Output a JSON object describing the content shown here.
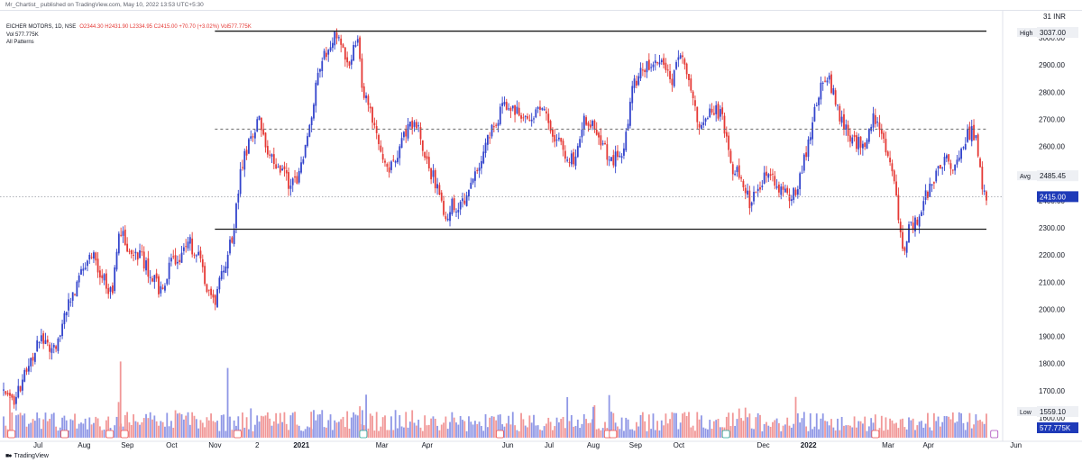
{
  "header": {
    "published_note": "Mr_Chartist_ published on TradingView.com, May 10, 2022 13:53 UTC+5:30",
    "symbol_line": "EICHER MOTORS, 1D, NSE",
    "ohlc": "O2344.30 H2431.90 L2334.95 C2415.00 +70.70 (+3.02%) Vol577.775K",
    "vol_line": "Vol 577.775K",
    "patterns_label": "All Patterns"
  },
  "price_axis": {
    "currency": "INR",
    "top_label": "31",
    "labels": {
      "high": "High",
      "high_value": "3037.00",
      "avg": "Avg",
      "avg_value": "2485.45",
      "last": "2415.00",
      "low": "Low",
      "low_value": "1559.10",
      "volume": "577.775K"
    }
  },
  "logo_text": "TradingView",
  "colors": {
    "up": "#3344cc",
    "down": "#e53935",
    "last_bg": "#1e3ab8",
    "vol_bg": "#1e3ab8"
  },
  "chart_data": {
    "type": "candlestick",
    "symbol": "EICHER MOTORS",
    "interval": "1D",
    "exchange": "NSE",
    "ylim": [
      1560,
      3080
    ],
    "yticks": [
      1600,
      1700,
      1800,
      1900,
      2000,
      2100,
      2200,
      2300,
      2400,
      2500,
      2600,
      2700,
      2800,
      2900,
      3000
    ],
    "x_labels": [
      {
        "label": "Jul",
        "pos": 0.035
      },
      {
        "label": "Aug",
        "pos": 0.082
      },
      {
        "label": "Sep",
        "pos": 0.126
      },
      {
        "label": "Oct",
        "pos": 0.171
      },
      {
        "label": "Nov",
        "pos": 0.215
      },
      {
        "label": "2",
        "pos": 0.258
      },
      {
        "label": "2021",
        "pos": 0.303,
        "bold": true
      },
      {
        "label": "Mar",
        "pos": 0.385
      },
      {
        "label": "Apr",
        "pos": 0.431
      },
      {
        "label": "Jun",
        "pos": 0.513
      },
      {
        "label": "Jul",
        "pos": 0.555
      },
      {
        "label": "Aug",
        "pos": 0.6
      },
      {
        "label": "Sep",
        "pos": 0.643
      },
      {
        "label": "Oct",
        "pos": 0.687
      },
      {
        "label": "Dec",
        "pos": 0.773
      },
      {
        "label": "2022",
        "pos": 0.819,
        "bold": true
      },
      {
        "label": "Mar",
        "pos": 0.9
      },
      {
        "label": "Apr",
        "pos": 0.941
      },
      {
        "label": "Jun",
        "pos": 1.03
      }
    ],
    "levels": [
      {
        "name": "resistance",
        "value": 3025,
        "style": "solid",
        "from": 0.215,
        "to": 1.0
      },
      {
        "name": "mid",
        "value": 2664,
        "style": "dashed",
        "from": 0.215,
        "to": 1.0
      },
      {
        "name": "support",
        "value": 2295,
        "style": "solid",
        "from": 0.215,
        "to": 1.0
      }
    ],
    "last_price": 2415,
    "average": 2485.45,
    "high": 3037,
    "low": 1559.1,
    "path": [
      [
        0,
        1700
      ],
      [
        0.01,
        1640
      ],
      [
        0.02,
        1760
      ],
      [
        0.03,
        1830
      ],
      [
        0.04,
        1900
      ],
      [
        0.05,
        1840
      ],
      [
        0.06,
        1960
      ],
      [
        0.07,
        2050
      ],
      [
        0.08,
        2140
      ],
      [
        0.09,
        2220
      ],
      [
        0.1,
        2120
      ],
      [
        0.11,
        2050
      ],
      [
        0.115,
        2220
      ],
      [
        0.12,
        2300
      ],
      [
        0.13,
        2180
      ],
      [
        0.14,
        2200
      ],
      [
        0.15,
        2120
      ],
      [
        0.16,
        2060
      ],
      [
        0.17,
        2170
      ],
      [
        0.18,
        2200
      ],
      [
        0.19,
        2240
      ],
      [
        0.2,
        2180
      ],
      [
        0.205,
        2100
      ],
      [
        0.215,
        2030
      ],
      [
        0.225,
        2170
      ],
      [
        0.235,
        2300
      ],
      [
        0.24,
        2500
      ],
      [
        0.25,
        2620
      ],
      [
        0.26,
        2720
      ],
      [
        0.27,
        2560
      ],
      [
        0.28,
        2540
      ],
      [
        0.29,
        2470
      ],
      [
        0.3,
        2490
      ],
      [
        0.31,
        2650
      ],
      [
        0.32,
        2880
      ],
      [
        0.33,
        2960
      ],
      [
        0.34,
        3030
      ],
      [
        0.35,
        2900
      ],
      [
        0.36,
        3010
      ],
      [
        0.365,
        2820
      ],
      [
        0.375,
        2700
      ],
      [
        0.38,
        2620
      ],
      [
        0.39,
        2500
      ],
      [
        0.4,
        2560
      ],
      [
        0.41,
        2660
      ],
      [
        0.42,
        2680
      ],
      [
        0.43,
        2550
      ],
      [
        0.44,
        2460
      ],
      [
        0.45,
        2320
      ],
      [
        0.455,
        2390
      ],
      [
        0.465,
        2370
      ],
      [
        0.475,
        2460
      ],
      [
        0.49,
        2590
      ],
      [
        0.5,
        2690
      ],
      [
        0.51,
        2760
      ],
      [
        0.52,
        2740
      ],
      [
        0.53,
        2700
      ],
      [
        0.54,
        2710
      ],
      [
        0.55,
        2740
      ],
      [
        0.56,
        2640
      ],
      [
        0.57,
        2580
      ],
      [
        0.58,
        2540
      ],
      [
        0.59,
        2700
      ],
      [
        0.6,
        2690
      ],
      [
        0.61,
        2590
      ],
      [
        0.62,
        2550
      ],
      [
        0.63,
        2580
      ],
      [
        0.64,
        2820
      ],
      [
        0.65,
        2880
      ],
      [
        0.66,
        2900
      ],
      [
        0.67,
        2940
      ],
      [
        0.68,
        2850
      ],
      [
        0.69,
        2930
      ],
      [
        0.7,
        2780
      ],
      [
        0.71,
        2670
      ],
      [
        0.72,
        2740
      ],
      [
        0.73,
        2720
      ],
      [
        0.74,
        2530
      ],
      [
        0.75,
        2490
      ],
      [
        0.76,
        2380
      ],
      [
        0.77,
        2460
      ],
      [
        0.78,
        2510
      ],
      [
        0.79,
        2450
      ],
      [
        0.8,
        2390
      ],
      [
        0.81,
        2480
      ],
      [
        0.82,
        2640
      ],
      [
        0.83,
        2800
      ],
      [
        0.84,
        2850
      ],
      [
        0.85,
        2720
      ],
      [
        0.86,
        2650
      ],
      [
        0.87,
        2610
      ],
      [
        0.875,
        2590
      ],
      [
        0.885,
        2720
      ],
      [
        0.895,
        2640
      ],
      [
        0.905,
        2500
      ],
      [
        0.91,
        2350
      ],
      [
        0.915,
        2200
      ],
      [
        0.92,
        2290
      ],
      [
        0.93,
        2340
      ],
      [
        0.94,
        2430
      ],
      [
        0.95,
        2500
      ],
      [
        0.96,
        2560
      ],
      [
        0.965,
        2510
      ],
      [
        0.975,
        2610
      ],
      [
        0.985,
        2660
      ],
      [
        0.99,
        2620
      ],
      [
        0.995,
        2470
      ],
      [
        1.0,
        2415
      ]
    ],
    "volume_spikes": [
      {
        "pos": 0.119,
        "h": 0.47
      },
      {
        "pos": 0.228,
        "h": 0.43
      },
      {
        "pos": 0.117,
        "h": 0.22
      },
      {
        "pos": 0.6,
        "h": 0.19
      },
      {
        "pos": 0.313,
        "h": 0.16
      },
      {
        "pos": 0.365,
        "h": 0.17
      }
    ],
    "events": [
      {
        "pos": 0.008,
        "type": "D"
      },
      {
        "pos": 0.062,
        "type": "D"
      },
      {
        "pos": 0.108,
        "type": "D"
      },
      {
        "pos": 0.123,
        "type": "D"
      },
      {
        "pos": 0.238,
        "type": "D"
      },
      {
        "pos": 0.366,
        "type": "S"
      },
      {
        "pos": 0.505,
        "type": "D"
      },
      {
        "pos": 0.615,
        "type": "D"
      },
      {
        "pos": 0.62,
        "type": "D"
      },
      {
        "pos": 0.735,
        "type": "S"
      },
      {
        "pos": 0.887,
        "type": "D"
      },
      {
        "pos": 1.008,
        "type": "E"
      }
    ]
  }
}
